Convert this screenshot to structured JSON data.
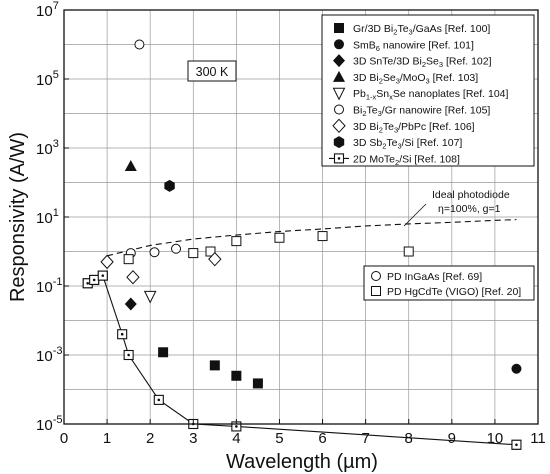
{
  "chart_data": {
    "type": "scatter",
    "xlabel": "Wavelength (µm)",
    "ylabel": "Responsivity (A/W)",
    "x_ticks": [
      "0",
      "1",
      "2",
      "3",
      "4",
      "5",
      "6",
      "7",
      "8",
      "9",
      "10",
      "11"
    ],
    "y_ticks": [
      {
        "exp": -5,
        "label": "10",
        "sup": "-5"
      },
      {
        "exp": -3,
        "label": "10",
        "sup": "-3"
      },
      {
        "exp": -1,
        "label": "10",
        "sup": "-1"
      },
      {
        "exp": 1,
        "label": "10",
        "sup": "1"
      },
      {
        "exp": 3,
        "label": "10",
        "sup": "3"
      },
      {
        "exp": 5,
        "label": "10",
        "sup": "5"
      },
      {
        "exp": 7,
        "label": "10",
        "sup": "7"
      }
    ],
    "xlim": [
      0,
      11
    ],
    "ylim_log10": [
      -5,
      7
    ],
    "yscale": "log",
    "grid": true,
    "temperature_label": "300 K",
    "legend_position": "top-right",
    "series": [
      {
        "name": "Gr/3D Bi₂Te₃/GaAs [Ref. 100]",
        "name_parts": [
          "Gr/3D Bi",
          "2",
          "Te",
          "3",
          "/GaAs [Ref. 100]"
        ],
        "marker": "square-filled",
        "points": [
          [
            2.3,
            0.0012
          ],
          [
            3.5,
            0.0005
          ],
          [
            4.0,
            0.00025
          ],
          [
            4.5,
            0.00015
          ]
        ]
      },
      {
        "name": "SmB₆ nanowire [Ref. 101]",
        "name_parts": [
          "SmB",
          "6",
          " nanowire [Ref. 101]"
        ],
        "marker": "circle-filled",
        "points": [
          [
            10.5,
            0.0004
          ]
        ]
      },
      {
        "name": "3D SnTe/3D Bi₂Se₃ [Ref. 102]",
        "name_parts": [
          "3D SnTe/3D Bi",
          "2",
          "Se",
          "3",
          " [Ref. 102]"
        ],
        "marker": "diamond-filled",
        "points": [
          [
            1.55,
            0.03
          ]
        ]
      },
      {
        "name": "3D Bi₂Se₃/MoO₃ [Ref. 103]",
        "name_parts": [
          "3D Bi",
          "2",
          "Se",
          "3",
          "/MoO",
          "3",
          " [Ref. 103]"
        ],
        "marker": "triangle-filled",
        "points": [
          [
            1.55,
            300
          ]
        ]
      },
      {
        "name": "Pb₁₋ₓSnₓSe nanoplates [Ref. 104]",
        "name_parts": [
          "Pb",
          "1-x",
          "Sn",
          "x",
          "Se nanoplates [Ref. 104]"
        ],
        "marker": "triangle-down-open",
        "points": [
          [
            2.0,
            0.05
          ]
        ]
      },
      {
        "name": "Bi₂Te₃/Gr nanowire [Ref. 105]",
        "name_parts": [
          "Bi",
          "2",
          "Te",
          "3",
          "/Gr nanowire [Ref. 105]"
        ],
        "marker": "circle-open",
        "points": [
          [
            1.75,
            1000000
          ]
        ]
      },
      {
        "name": "3D Bi₂Te₃/PbPc [Ref. 106]",
        "name_parts": [
          "3D Bi",
          "2",
          "Te",
          "3",
          "/PbPc [Ref. 106]"
        ],
        "marker": "diamond-open",
        "points": [
          [
            1.0,
            0.5
          ],
          [
            1.6,
            0.18
          ],
          [
            3.5,
            0.6
          ]
        ]
      },
      {
        "name": "3D Sb₂Te₃/Si [Ref. 107]",
        "name_parts": [
          "3D Sb",
          "2",
          "Te",
          "3",
          "/Si [Ref. 107]"
        ],
        "marker": "hexagon-filled",
        "points": [
          [
            2.45,
            80
          ]
        ]
      },
      {
        "name": "2D MoTe₂/Si [Ref. 108]",
        "name_parts": [
          "2D MoTe",
          "2",
          "/Si [Ref. 108]"
        ],
        "marker": "square-dot-line",
        "points": [
          [
            0.55,
            0.12
          ],
          [
            0.7,
            0.15
          ],
          [
            0.9,
            0.2
          ],
          [
            1.35,
            0.004
          ],
          [
            1.5,
            0.001
          ],
          [
            2.2,
            5e-05
          ],
          [
            3.0,
            1e-05
          ],
          [
            4.0,
            8.5e-06
          ],
          [
            10.5,
            2.5e-06
          ]
        ]
      }
    ],
    "reference_series": [
      {
        "name": "PD InGaAs [Ref. 69]",
        "marker": "circle-open",
        "points": [
          [
            1.55,
            0.9
          ],
          [
            2.1,
            0.95
          ],
          [
            2.6,
            1.2
          ]
        ]
      },
      {
        "name": "PD HgCdTe (VIGO) [Ref. 20]",
        "marker": "square-open",
        "points": [
          [
            0.55,
            0.12
          ],
          [
            0.7,
            0.15
          ],
          [
            0.9,
            0.2
          ],
          [
            1.5,
            0.6
          ],
          [
            3.0,
            0.9
          ],
          [
            3.4,
            1.0
          ],
          [
            4.0,
            2.0
          ],
          [
            5.0,
            2.5
          ],
          [
            6.0,
            2.8
          ],
          [
            8.0,
            1.0
          ],
          [
            10.5,
            2.5e-06
          ]
        ]
      }
    ],
    "ideal_line": {
      "label_line1": "Ideal photodiode",
      "label_line2": "η=100%, g=1",
      "points": [
        [
          1.0,
          0.75
        ],
        [
          2.0,
          1.5
        ],
        [
          3.0,
          2.3
        ],
        [
          4.0,
          3.0
        ],
        [
          5.0,
          3.8
        ],
        [
          6.0,
          4.5
        ],
        [
          7.0,
          5.5
        ],
        [
          8.0,
          6.3
        ],
        [
          9.0,
          7.0
        ],
        [
          10.0,
          8.0
        ],
        [
          10.5,
          8.4
        ]
      ]
    }
  }
}
